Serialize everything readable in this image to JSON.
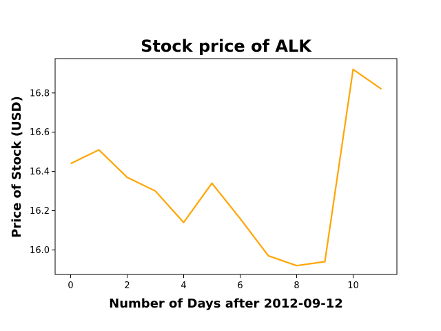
{
  "chart_data": {
    "type": "line",
    "title": "Stock price of ALK",
    "xlabel": "Number of Days after 2012-09-12",
    "ylabel": "Price of Stock (USD)",
    "x": [
      0,
      1,
      2,
      3,
      4,
      5,
      6,
      7,
      8,
      9,
      10,
      11
    ],
    "series": [
      {
        "values": [
          16.44,
          16.51,
          16.37,
          16.3,
          16.14,
          16.34,
          16.16,
          15.97,
          15.92,
          15.94,
          16.92,
          16.82
        ],
        "color": "#FFA500"
      }
    ],
    "xlim": [
      -0.55,
      11.55
    ],
    "ylim": [
      15.875,
      16.975
    ],
    "xticks": [
      0,
      2,
      4,
      6,
      8,
      10
    ],
    "yticks": [
      16.0,
      16.2,
      16.4,
      16.6,
      16.8
    ],
    "grid": false,
    "legend": "none"
  }
}
